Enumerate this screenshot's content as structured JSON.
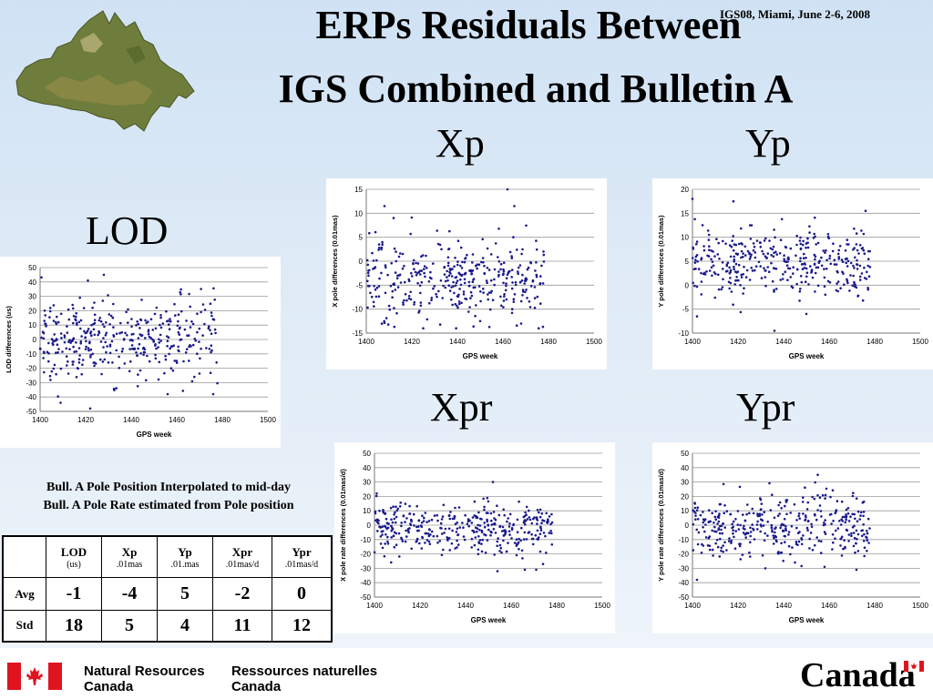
{
  "header": {
    "title_line1": "ERPs Residuals Between",
    "title_line2": "IGS Combined and Bulletin A",
    "conference": "IGS08, Miami, June 2-6, 2008"
  },
  "notes": {
    "line1": "Bull. A Pole  Position Interpolated to mid-day",
    "line2": "Bull. A Pole Rate estimated from Pole position"
  },
  "table": {
    "columns": [
      {
        "name": "LOD",
        "unit": "(us)"
      },
      {
        "name": "Xp",
        "unit": ".01mas"
      },
      {
        "name": "Yp",
        "unit": ".01.mas"
      },
      {
        "name": "Xpr",
        "unit": ".01mas/d"
      },
      {
        "name": "Ypr",
        "unit": ".01mas/d"
      }
    ],
    "rows": [
      {
        "label": "Avg",
        "values": [
          "-1",
          "-4",
          "5",
          "-2",
          "0"
        ]
      },
      {
        "label": "Std",
        "values": [
          "18",
          "5",
          "4",
          "11",
          "12"
        ]
      }
    ]
  },
  "footer": {
    "dept_en_line1": "Natural Resources",
    "dept_en_line2": "Canada",
    "dept_fr_line1": "Ressources naturelles",
    "dept_fr_line2": "Canada",
    "wordmark": "Canada",
    "flag_red": "#e0141e"
  },
  "chart_data": [
    {
      "id": "lod",
      "type": "scatter",
      "title": "LOD",
      "xlabel": "GPS week",
      "ylabel": "LOD differences (us)",
      "xlim": [
        1400,
        1500
      ],
      "ylim": [
        -50,
        50
      ],
      "xticks": [
        1400,
        1420,
        1440,
        1460,
        1480,
        1500
      ],
      "yticks": [
        -50,
        -40,
        -30,
        -20,
        -10,
        0,
        10,
        20,
        30,
        40,
        50
      ],
      "x_range": [
        1400,
        1478
      ],
      "center": 0,
      "spread": 16,
      "color": "#1a1a8c",
      "grid": true,
      "n_points": 380,
      "outliers": [
        [
          1409,
          -44
        ],
        [
          1422,
          -48
        ],
        [
          1428,
          45
        ],
        [
          1456,
          -38
        ],
        [
          1476,
          -38
        ],
        [
          1421,
          41
        ]
      ]
    },
    {
      "id": "xp",
      "type": "scatter",
      "title": "Xp",
      "xlabel": "GPS week",
      "ylabel": "X pole differences (0.01mas)",
      "xlim": [
        1400,
        1500
      ],
      "ylim": [
        -15,
        15
      ],
      "xticks": [
        1400,
        1420,
        1440,
        1460,
        1480,
        1500
      ],
      "yticks": [
        -15,
        -10,
        -5,
        0,
        5,
        10,
        15
      ],
      "x_range": [
        1400,
        1478
      ],
      "center": -4,
      "spread": 4.5,
      "color": "#1a1a8c",
      "grid": true,
      "n_points": 380,
      "outliers": [
        [
          1462,
          15
        ],
        [
          1408,
          11.5
        ],
        [
          1465,
          11.5
        ],
        [
          1412,
          9
        ],
        [
          1468,
          -13
        ],
        [
          1450,
          -12.5
        ]
      ]
    },
    {
      "id": "yp",
      "type": "scatter",
      "title": "Yp",
      "xlabel": "GPS week",
      "ylabel": "Y pole differences (0.01mas)",
      "xlim": [
        1400,
        1500
      ],
      "ylim": [
        -10,
        20
      ],
      "xticks": [
        1400,
        1420,
        1440,
        1460,
        1480,
        1500
      ],
      "yticks": [
        -10,
        -5,
        0,
        5,
        10,
        15,
        20
      ],
      "x_range": [
        1400,
        1478
      ],
      "center": 5,
      "spread": 4,
      "color": "#1a1a8c",
      "grid": true,
      "n_points": 380,
      "outliers": [
        [
          1400,
          18
        ],
        [
          1418,
          17.5
        ],
        [
          1476,
          15.5
        ],
        [
          1436,
          -9.5
        ],
        [
          1402,
          -6.5
        ],
        [
          1450,
          -6
        ]
      ]
    },
    {
      "id": "xpr",
      "type": "scatter",
      "title": "Xpr",
      "xlabel": "GPS week",
      "ylabel": "X pole rate differences (0.01mas/d)",
      "xlim": [
        1400,
        1500
      ],
      "ylim": [
        -50,
        50
      ],
      "xticks": [
        1400,
        1420,
        1440,
        1460,
        1480,
        1500
      ],
      "yticks": [
        -50,
        -40,
        -30,
        -20,
        -10,
        0,
        10,
        20,
        30,
        40,
        50
      ],
      "x_range": [
        1400,
        1478
      ],
      "center": -2,
      "spread": 10,
      "color": "#1a1a8c",
      "grid": true,
      "n_points": 380,
      "outliers": [
        [
          1452,
          30
        ],
        [
          1454,
          -32
        ],
        [
          1466,
          -31
        ],
        [
          1471,
          -31
        ],
        [
          1474,
          -27
        ]
      ]
    },
    {
      "id": "ypr",
      "type": "scatter",
      "title": "Ypr",
      "xlabel": "GPS week",
      "ylabel": "Y pole rate differences (0.01mas/d)",
      "xlim": [
        1400,
        1500
      ],
      "ylim": [
        -50,
        50
      ],
      "xticks": [
        1400,
        1420,
        1440,
        1460,
        1480,
        1500
      ],
      "yticks": [
        -50,
        -40,
        -30,
        -20,
        -10,
        0,
        10,
        20,
        30,
        40,
        50
      ],
      "x_range": [
        1400,
        1478
      ],
      "center": 0,
      "spread": 12,
      "color": "#1a1a8c",
      "grid": true,
      "n_points": 380,
      "outliers": [
        [
          1455,
          35
        ],
        [
          1402,
          -38
        ],
        [
          1472,
          -31
        ],
        [
          1432,
          -30
        ],
        [
          1458,
          -29
        ]
      ]
    }
  ]
}
